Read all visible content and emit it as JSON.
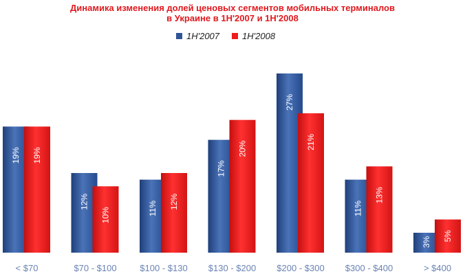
{
  "colors": {
    "series1": "#2f5597",
    "series2": "#ee1c1c",
    "title": "#e0191e",
    "tick": "#6a83b4"
  },
  "chart_data": {
    "type": "bar",
    "title": "Динамика изменения долей ценовых сегментов мобильных терминалов",
    "subtitle": "в Украине в  1Н'2007 и 1Н'2008",
    "xlabel": "",
    "ylabel": "",
    "legend_position": "top",
    "grid": false,
    "ylim": [
      0,
      27
    ],
    "categories": [
      "< $70",
      "$70 - $100",
      "$100 - $130",
      "$130 - $200",
      "$200 - $300",
      "$300 - $400",
      "> $400"
    ],
    "series": [
      {
        "name": "1Н'2007",
        "values": [
          19,
          12,
          11,
          17,
          27,
          11,
          3
        ],
        "labels": [
          "19%",
          "12%",
          "11%",
          "17%",
          "27%",
          "11%",
          "3%"
        ]
      },
      {
        "name": "1Н'2008",
        "values": [
          19,
          10,
          12,
          20,
          21,
          13,
          5
        ],
        "labels": [
          "19%",
          "10%",
          "12%",
          "20%",
          "21%",
          "13%",
          "5%"
        ]
      }
    ]
  }
}
